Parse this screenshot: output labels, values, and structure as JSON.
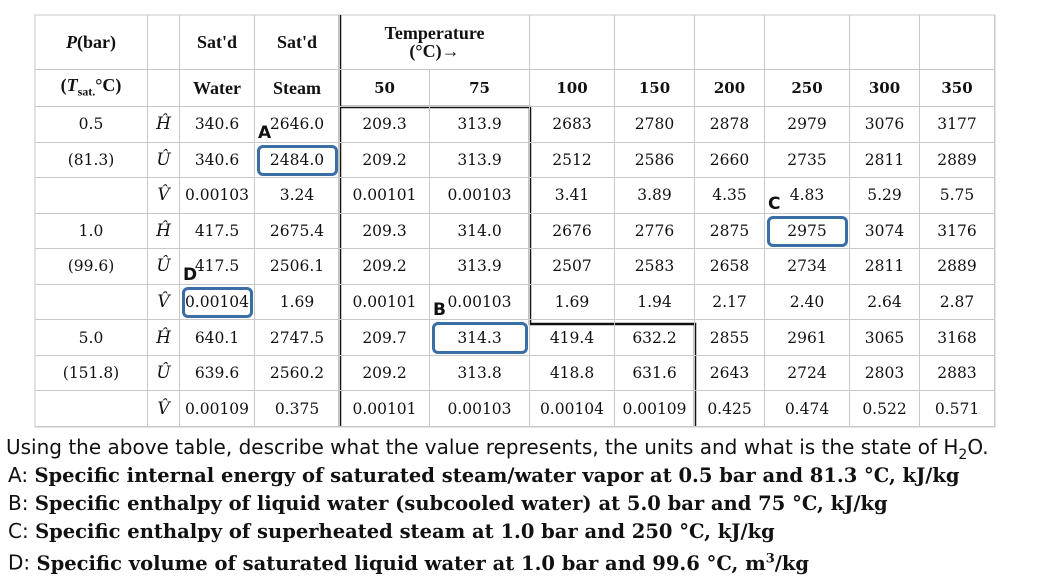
{
  "table": {
    "header": {
      "p_symbol": "P",
      "p_unit": "(bar)",
      "sat1": "Sat'd",
      "sat2": "Sat'd",
      "temp": "Temperature",
      "temp_unit": "(°C)→",
      "tsat_open": "(",
      "tsat_T": "T",
      "tsat_sub": "sat.",
      "tsat_close": "°C)",
      "water": "Water",
      "steam": "Steam",
      "temps": [
        "50",
        "75",
        "100",
        "150",
        "200",
        "250",
        "300",
        "350"
      ]
    },
    "groups": [
      {
        "pressure": "0.5",
        "tsat": "(81.3)",
        "rows": [
          {
            "symbol": "Ĥ",
            "values": [
              "340.6",
              "2646.0",
              "209.3",
              "313.9",
              "2683",
              "2780",
              "2878",
              "2979",
              "3076",
              "3177"
            ]
          },
          {
            "symbol": "Û",
            "values": [
              "340.6",
              "2484.0",
              "209.2",
              "313.9",
              "2512",
              "2586",
              "2660",
              "2735",
              "2811",
              "2889"
            ]
          },
          {
            "symbol": "V̂",
            "values": [
              "0.00103",
              "3.24",
              "0.00101",
              "0.00103",
              "3.41",
              "3.89",
              "4.35",
              "4.83",
              "5.29",
              "5.75"
            ]
          }
        ]
      },
      {
        "pressure": "1.0",
        "tsat": "(99.6)",
        "rows": [
          {
            "symbol": "Ĥ",
            "values": [
              "417.5",
              "2675.4",
              "209.3",
              "314.0",
              "2676",
              "2776",
              "2875",
              "2975",
              "3074",
              "3176"
            ]
          },
          {
            "symbol": "Û",
            "values": [
              "417.5",
              "2506.1",
              "209.2",
              "313.9",
              "2507",
              "2583",
              "2658",
              "2734",
              "2811",
              "2889"
            ]
          },
          {
            "symbol": "V̂",
            "values": [
              "0.00104",
              "1.69",
              "0.00101",
              "0.00103",
              "1.69",
              "1.94",
              "2.17",
              "2.40",
              "2.64",
              "2.87"
            ]
          }
        ]
      },
      {
        "pressure": "5.0",
        "tsat": "(151.8)",
        "rows": [
          {
            "symbol": "Ĥ",
            "values": [
              "640.1",
              "2747.5",
              "209.7",
              "314.3",
              "419.4",
              "632.2",
              "2855",
              "2961",
              "3065",
              "3168"
            ]
          },
          {
            "symbol": "Û",
            "values": [
              "639.6",
              "2560.2",
              "209.2",
              "313.8",
              "418.8",
              "631.6",
              "2643",
              "2724",
              "2803",
              "2883"
            ]
          },
          {
            "symbol": "V̂",
            "values": [
              "0.00109",
              "0.375",
              "0.00101",
              "0.00103",
              "0.00104",
              "0.00109",
              "0.425",
              "0.474",
              "0.522",
              "0.571"
            ]
          }
        ]
      }
    ],
    "markers": [
      "A",
      "B",
      "C",
      "D"
    ]
  },
  "question": {
    "text": "Using the above table, describe what the value represents, the units and what is the state of H",
    "sub": "2",
    "tail": "O."
  },
  "answers": [
    {
      "letter": "A:",
      "text": "Specific internal energy of saturated steam/water vapor at 0.5 bar and 81.3 °C, kJ/kg"
    },
    {
      "letter": "B:",
      "text": "Specific enthalpy of liquid water (subcooled water) at 5.0 bar and 75 °C, kJ/kg"
    },
    {
      "letter": "C:",
      "text": "Specific enthalpy of superheated steam at 1.0 bar and 250 °C, kJ/kg"
    },
    {
      "letter": "D:",
      "text": "Specific volume of saturated liquid water at 1.0 bar and 99.6 °C, m",
      "sup": "3",
      "tail": "/kg"
    }
  ]
}
